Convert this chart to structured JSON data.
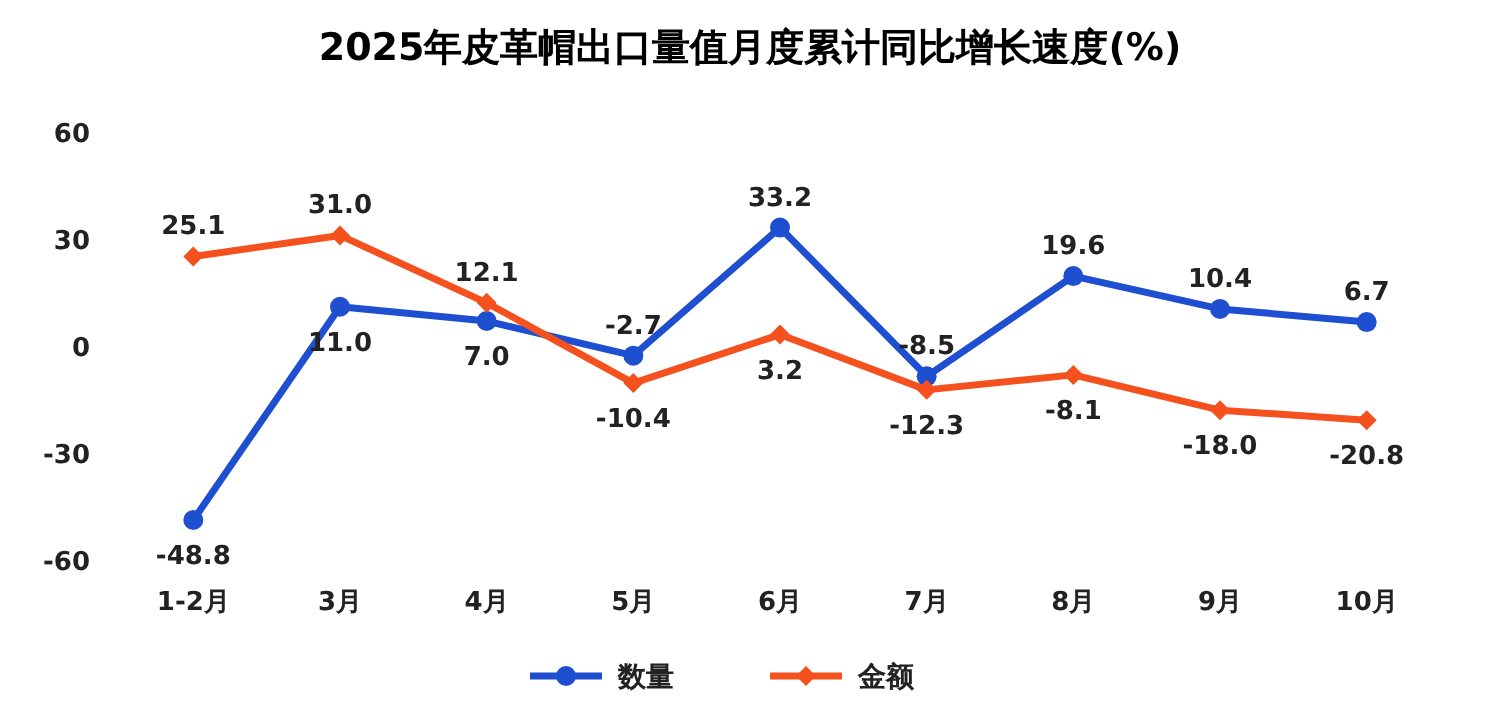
{
  "chart_data": {
    "type": "line",
    "title": "2025年皮革帽出口量值月度累计同比增长速度(%)",
    "categories": [
      "1-2月",
      "3月",
      "4月",
      "5月",
      "6月",
      "7月",
      "8月",
      "9月",
      "10月"
    ],
    "series": [
      {
        "name": "数量",
        "color": "#1f4fd1",
        "marker": "circle",
        "values": [
          -48.8,
          11.0,
          7.0,
          -2.7,
          33.2,
          -8.5,
          19.6,
          10.4,
          6.7
        ],
        "value_labels": [
          "-48.8",
          "11.0",
          "7.0",
          "-2.7",
          "33.2",
          "-8.5",
          "19.6",
          "10.4",
          "6.7"
        ]
      },
      {
        "name": "金额",
        "color": "#f4511e",
        "marker": "diamond",
        "values": [
          25.1,
          31.0,
          12.1,
          -10.4,
          3.2,
          -12.3,
          -8.1,
          -18.0,
          -20.8
        ],
        "value_labels": [
          "25.1",
          "31.0",
          "12.1",
          "-10.4",
          "3.2",
          "-12.3",
          "-8.1",
          "-18.0",
          "-20.8"
        ]
      }
    ],
    "ylim": [
      -60,
      60
    ],
    "yticks": [
      -60,
      -30,
      0,
      30,
      60
    ],
    "grid": false,
    "legend": "bottom"
  }
}
